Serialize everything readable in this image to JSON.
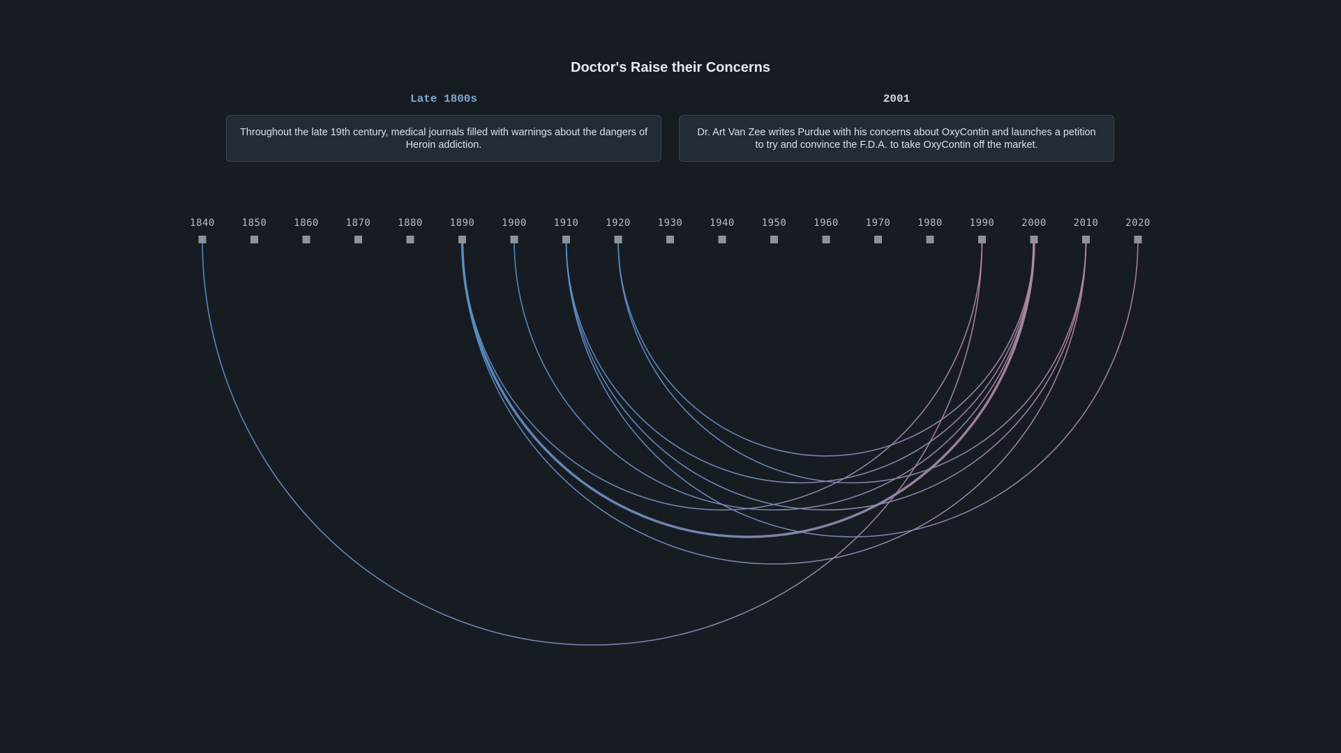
{
  "title": "Doctor's Raise their Concerns",
  "left_event": {
    "label": "Late 1800s",
    "text": "Throughout the late 19th century, medical journals filled with warnings about the dangers of Heroin addiction."
  },
  "right_event": {
    "label": "2001",
    "text": "Dr. Art Van Zee writes Purdue with his concerns about OxyContin and launches a petition to try and convince the F.D.A. to take OxyContin off the market."
  },
  "colors": {
    "background": "#171c23",
    "arc_start": "#5b93cc",
    "arc_end": "#b48aa4",
    "marker": "#8e939b"
  },
  "chart_data": {
    "type": "arc",
    "x": [
      1840,
      1850,
      1860,
      1870,
      1880,
      1890,
      1900,
      1910,
      1920,
      1930,
      1940,
      1950,
      1960,
      1970,
      1980,
      1990,
      2000,
      2010,
      2020
    ],
    "links": [
      {
        "from": 1840,
        "to": 1990,
        "weight": 1
      },
      {
        "from": 1890,
        "to": 2000,
        "weight": 3
      },
      {
        "from": 1890,
        "to": 1990,
        "weight": 1
      },
      {
        "from": 1890,
        "to": 2010,
        "weight": 1
      },
      {
        "from": 1900,
        "to": 2000,
        "weight": 1
      },
      {
        "from": 1910,
        "to": 2000,
        "weight": 1
      },
      {
        "from": 1910,
        "to": 2010,
        "weight": 1
      },
      {
        "from": 1910,
        "to": 2020,
        "weight": 1
      },
      {
        "from": 1920,
        "to": 2000,
        "weight": 1
      },
      {
        "from": 1920,
        "to": 2010,
        "weight": 1
      }
    ]
  }
}
